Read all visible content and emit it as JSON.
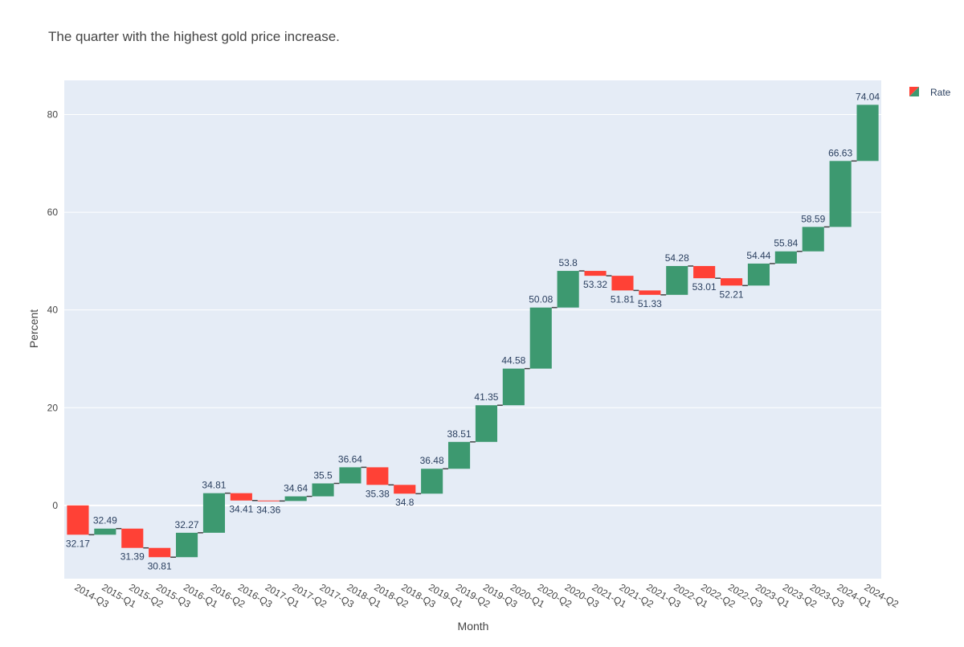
{
  "chart_data": {
    "type": "bar",
    "subtype": "waterfall",
    "title": "The quarter with the highest gold price increase.",
    "xlabel": "Month",
    "ylabel": "Percent",
    "ylim": [
      -15,
      87
    ],
    "yticks": [
      0,
      20,
      40,
      60,
      80
    ],
    "grid": true,
    "legend": {
      "position": "top-right",
      "label": "Rate"
    },
    "colors": {
      "increase": "#3d9970",
      "decrease": "#ff4136",
      "connector": "#444444",
      "plot_bg": "#e5ecf6",
      "grid": "#ffffff",
      "text": "#2a3f5f"
    },
    "bars": [
      {
        "x": "2014-Q3",
        "base": 0,
        "end": -6,
        "label": "32.17"
      },
      {
        "x": "2015-Q1",
        "base": -6,
        "end": -4.75,
        "label": "32.49"
      },
      {
        "x": "2015-Q2",
        "base": -4.75,
        "end": -8.7,
        "label": "31.39"
      },
      {
        "x": "2015-Q3",
        "base": -8.7,
        "end": -10.6,
        "label": "30.81"
      },
      {
        "x": "2016-Q1",
        "base": -10.6,
        "end": -5.6,
        "label": "32.27"
      },
      {
        "x": "2016-Q2",
        "base": -5.6,
        "end": 2.5,
        "label": "34.81"
      },
      {
        "x": "2016-Q3",
        "base": 2.5,
        "end": 1.0,
        "label": "34.41"
      },
      {
        "x": "2017-Q1",
        "base": 1.0,
        "end": 0.9,
        "label": "34.36"
      },
      {
        "x": "2017-Q2",
        "base": 0.9,
        "end": 1.85,
        "label": "34.64"
      },
      {
        "x": "2017-Q3",
        "base": 1.85,
        "end": 4.5,
        "label": "35.5"
      },
      {
        "x": "2018-Q1",
        "base": 4.5,
        "end": 7.8,
        "label": "36.64"
      },
      {
        "x": "2018-Q2",
        "base": 7.8,
        "end": 4.2,
        "label": "35.38"
      },
      {
        "x": "2018-Q3",
        "base": 4.2,
        "end": 2.4,
        "label": "34.8"
      },
      {
        "x": "2019-Q1",
        "base": 2.4,
        "end": 7.5,
        "label": "36.48"
      },
      {
        "x": "2019-Q2",
        "base": 7.5,
        "end": 13.0,
        "label": "38.51"
      },
      {
        "x": "2019-Q3",
        "base": 13.0,
        "end": 20.5,
        "label": "41.35"
      },
      {
        "x": "2020-Q1",
        "base": 20.5,
        "end": 28.0,
        "label": "44.58"
      },
      {
        "x": "2020-Q2",
        "base": 28.0,
        "end": 40.5,
        "label": "50.08"
      },
      {
        "x": "2020-Q3",
        "base": 40.5,
        "end": 48.0,
        "label": "53.8"
      },
      {
        "x": "2021-Q1",
        "base": 48.0,
        "end": 47.0,
        "label": "53.32"
      },
      {
        "x": "2021-Q2",
        "base": 47.0,
        "end": 44.0,
        "label": "51.81"
      },
      {
        "x": "2021-Q3",
        "base": 44.0,
        "end": 43.1,
        "label": "51.33"
      },
      {
        "x": "2022-Q1",
        "base": 43.1,
        "end": 49.0,
        "label": "54.28"
      },
      {
        "x": "2022-Q2",
        "base": 49.0,
        "end": 46.5,
        "label": "53.01"
      },
      {
        "x": "2022-Q3",
        "base": 46.5,
        "end": 45.0,
        "label": "52.21"
      },
      {
        "x": "2023-Q1",
        "base": 45.0,
        "end": 49.5,
        "label": "54.44"
      },
      {
        "x": "2023-Q2",
        "base": 49.5,
        "end": 52.0,
        "label": "55.84"
      },
      {
        "x": "2023-Q3",
        "base": 52.0,
        "end": 57.0,
        "label": "58.59"
      },
      {
        "x": "2024-Q1",
        "base": 57.0,
        "end": 70.5,
        "label": "66.63"
      },
      {
        "x": "2024-Q2",
        "base": 70.5,
        "end": 82.0,
        "label": "74.04"
      }
    ]
  }
}
